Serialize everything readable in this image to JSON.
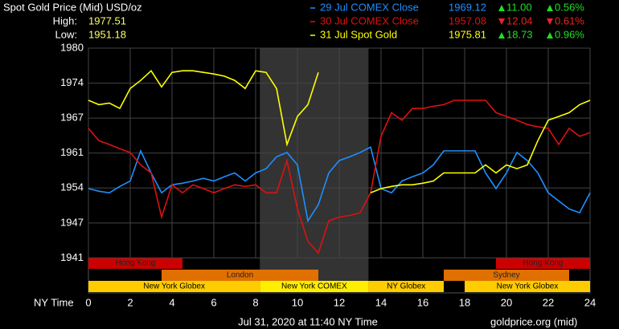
{
  "chart_data": {
    "type": "line",
    "title": "Spot Gold Price (Mid) USD/oz",
    "stats": [
      {
        "label": "High:",
        "value": "1977.51"
      },
      {
        "label": "Low:",
        "value": "1951.18"
      }
    ],
    "x_label": "NY Time",
    "footer": "Jul 31, 2020 at 11:40 NY Time",
    "source": "goldprice.org (mid)",
    "xlim": [
      0,
      24
    ],
    "xticks": [
      0,
      2,
      4,
      6,
      8,
      10,
      12,
      14,
      16,
      18,
      20,
      22,
      24
    ],
    "ylim": [
      1934.5,
      1980
    ],
    "yticks": [
      1941,
      {
        "value": 1947.5,
        "label": "1947"
      },
      1954,
      {
        "value": 1960.5,
        "label": "1961"
      },
      1967,
      {
        "value": 1973.5,
        "label": "1974"
      },
      1980
    ],
    "grid": true,
    "shaded": [
      8.2,
      13.4
    ],
    "sessions": [
      {
        "name": "Hong Kong",
        "start": 0,
        "end": 4.5,
        "row": 0,
        "color": "#cc0000"
      },
      {
        "name": "Hong Kong",
        "start": 19.5,
        "end": 24,
        "row": 0,
        "color": "#cc0000"
      },
      {
        "name": "London",
        "start": 3.5,
        "end": 11,
        "row": 1,
        "color": "#e07000"
      },
      {
        "name": "Sydney",
        "start": 17,
        "end": 23,
        "row": 1,
        "color": "#e07000"
      },
      {
        "name": "New York Globex",
        "start": 0,
        "end": 8.2,
        "row": 2,
        "color": "#ffcc00"
      },
      {
        "name": "New York COMEX",
        "start": 8.2,
        "end": 13.4,
        "row": 2,
        "color": "#ffee00"
      },
      {
        "name": "NY Globex",
        "start": 13.4,
        "end": 17,
        "row": 2,
        "color": "#ffcc00"
      },
      {
        "name": "New York Globex",
        "start": 18,
        "end": 24,
        "row": 2,
        "color": "#ffcc00"
      }
    ],
    "x": [
      0,
      0.5,
      1,
      1.5,
      2,
      2.5,
      3,
      3.5,
      4,
      4.5,
      5,
      5.5,
      6,
      6.5,
      7,
      7.5,
      8,
      8.5,
      9,
      9.5,
      10,
      10.5,
      11,
      11.5,
      12,
      12.5,
      13,
      13.5,
      14,
      14.5,
      15,
      15.5,
      16,
      16.5,
      17,
      17.5,
      18,
      18.5,
      19,
      19.5,
      20,
      20.5,
      21,
      21.5,
      22,
      22.5,
      23,
      23.5,
      24
    ],
    "series": [
      {
        "name": "29 Jul COMEX Close",
        "color": "#1e8fff",
        "price": "1969.12",
        "change": "11.00",
        "change_pct": "0.56%",
        "direction": "up",
        "values": [
          1953.9,
          1953.4,
          1953.1,
          1954.3,
          1955.3,
          1960.9,
          1956.8,
          1953.1,
          1954.6,
          1954.9,
          1955.3,
          1955.8,
          1955.3,
          1956.1,
          1956.8,
          1955.3,
          1956.8,
          1957.6,
          1959.8,
          1960.6,
          1958.3,
          1947.9,
          1950.9,
          1956.8,
          1959.1,
          1959.8,
          1960.6,
          1961.6,
          1953.9,
          1953.1,
          1955.3,
          1956.1,
          1956.8,
          1958.3,
          1960.9,
          1960.9,
          1960.9,
          1960.9,
          1956.8,
          1953.9,
          1956.8,
          1960.6,
          1959.1,
          1956.8,
          1953.1,
          1951.6,
          1950.1,
          1949.4,
          1953.1
        ]
      },
      {
        "name": "30 Jul COMEX Close",
        "color": "#dd1111",
        "price": "1957.08",
        "change": "12.04",
        "change_pct": "0.61%",
        "direction": "down",
        "values": [
          1965.1,
          1962.8,
          1962.1,
          1961.3,
          1960.6,
          1958.3,
          1956.8,
          1948.6,
          1954.6,
          1953.1,
          1954.6,
          1953.9,
          1953.1,
          1953.9,
          1954.6,
          1954.3,
          1954.6,
          1953.1,
          1953.1,
          1959.1,
          1950.1,
          1944.1,
          1941.9,
          1947.9,
          1948.6,
          1948.9,
          1949.4,
          1953.1,
          1963.6,
          1968.0,
          1966.6,
          1968.8,
          1968.8,
          1969.2,
          1969.5,
          1970.3,
          1970.3,
          1970.3,
          1970.3,
          1968.0,
          1967.3,
          1966.6,
          1965.8,
          1965.4,
          1965.1,
          1962.1,
          1965.1,
          1963.6,
          1964.3
        ]
      },
      {
        "name": "31 Jul Spot Gold",
        "color": "#ffff00",
        "price": "1975.81",
        "change": "18.73",
        "change_pct": "0.96%",
        "direction": "up",
        "values": [
          1970.3,
          1969.5,
          1969.8,
          1968.8,
          1972.5,
          1974.0,
          1975.8,
          1972.8,
          1975.5,
          1975.8,
          1975.8,
          1975.5,
          1975.2,
          1974.8,
          1974.0,
          1972.5,
          1975.8,
          1975.5,
          1972.5,
          1962.1,
          1967.3,
          1969.5,
          1975.5,
          null,
          null,
          null,
          null,
          1953.1,
          1953.9,
          1954.3,
          1954.6,
          1954.6,
          1954.9,
          1955.3,
          1956.8,
          1956.8,
          1956.8,
          1956.8,
          1958.3,
          1956.8,
          1958.3,
          1957.6,
          1958.3,
          1962.8,
          1966.6,
          1967.3,
          1968.0,
          1969.5,
          1970.3
        ]
      }
    ]
  }
}
